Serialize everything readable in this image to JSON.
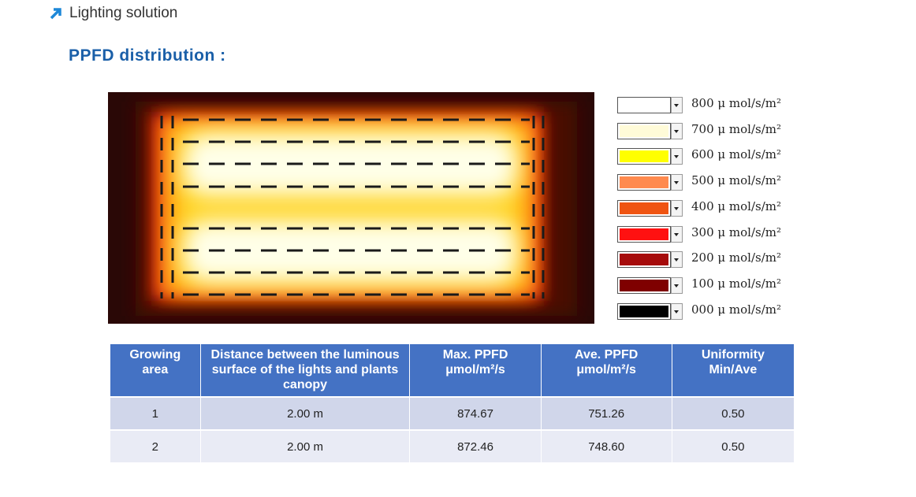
{
  "header": {
    "title": "Lighting solution"
  },
  "section": {
    "title": "PPFD distribution :"
  },
  "legend": [
    {
      "label": "800 μ mol/s/m²",
      "color": "#ffffff"
    },
    {
      "label": "700 μ mol/s/m²",
      "color": "#fffbd8"
    },
    {
      "label": "600 μ mol/s/m²",
      "color": "#ffff00"
    },
    {
      "label": "500 μ mol/s/m²",
      "color": "#ff8a4e"
    },
    {
      "label": "400 μ mol/s/m²",
      "color": "#ef5412"
    },
    {
      "label": "300 μ mol/s/m²",
      "color": "#ff1111"
    },
    {
      "label": "200 μ mol/s/m²",
      "color": "#a60c0c"
    },
    {
      "label": "100 μ mol/s/m²",
      "color": "#7f0000"
    },
    {
      "label": "000 μ mol/s/m²",
      "color": "#000000"
    }
  ],
  "table": {
    "header": [
      "Growing area",
      "Distance between the luminous surface of the lights and plants canopy",
      "Max. PPFD μmol/m²/s",
      "Ave. PPFD μmol/m²/s",
      "Uniformity Min/Ave"
    ],
    "rows": [
      [
        "1",
        "2.00 m",
        "874.67",
        "751.26",
        "0.50"
      ],
      [
        "2",
        "2.00 m",
        "872.46",
        "748.60",
        "0.50"
      ]
    ]
  }
}
